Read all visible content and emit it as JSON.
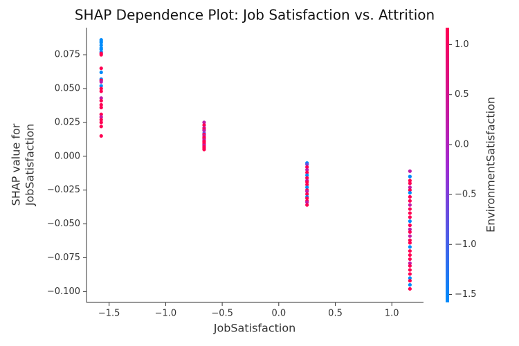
{
  "chart_data": {
    "type": "scatter",
    "title": "SHAP Dependence Plot: Job Satisfaction vs. Attrition",
    "x_label": "JobSatisfaction",
    "y_label": [
      "SHAP value for",
      "JobSatisfaction"
    ],
    "colorbar_label": "EnvironmentSatisfaction",
    "xlim": [
      -1.7,
      1.28
    ],
    "ylim": [
      -0.108,
      0.095
    ],
    "clim": [
      -1.58,
      1.17
    ],
    "colormap": [
      "#008bfb",
      "#a12ad1",
      "#ff0052"
    ],
    "xticks": [
      {
        "value": -1.5,
        "label": "−1.5"
      },
      {
        "value": -1.0,
        "label": "−1.0"
      },
      {
        "value": -0.5,
        "label": "−0.5"
      },
      {
        "value": 0,
        "label": "0.0"
      },
      0.5,
      {
        "value": 1,
        "label": "1.0"
      }
    ],
    "yticks": [
      0.075,
      {
        "value": 0.05,
        "label": "0.050"
      },
      0.025,
      {
        "value": 0,
        "label": "0.000"
      },
      {
        "value": -0.025,
        "label": "−0.025"
      },
      {
        "value": -0.05,
        "label": "−0.050"
      },
      {
        "value": -0.075,
        "label": "−0.075"
      },
      {
        "value": -0.1,
        "label": "−0.100"
      }
    ],
    "cticks": [
      {
        "value": 1,
        "label": "1.0"
      },
      0.5,
      {
        "value": 0,
        "label": "0.0"
      },
      {
        "value": -0.5,
        "label": "−0.5"
      },
      {
        "value": -1,
        "label": "−1.0"
      },
      {
        "value": -1.5,
        "label": "−1.5"
      }
    ],
    "x": [
      -1.57,
      -1.57,
      -1.57,
      -1.57,
      -1.57,
      -1.57,
      -1.57,
      -1.57,
      -1.57,
      -1.57,
      -1.57,
      -1.57,
      -1.57,
      -1.57,
      -1.57,
      -1.57,
      -1.57,
      -1.57,
      -1.57,
      -1.57,
      -1.57,
      -1.57,
      -1.57,
      -1.57,
      -1.57,
      -1.57,
      -1.57,
      -0.66,
      -0.66,
      -0.66,
      -0.66,
      -0.66,
      -0.66,
      -0.66,
      -0.66,
      -0.66,
      -0.66,
      -0.66,
      -0.66,
      -0.66,
      -0.66,
      -0.66,
      -0.66,
      -0.66,
      -0.66,
      0.25,
      0.25,
      0.25,
      0.25,
      0.25,
      0.25,
      0.25,
      0.25,
      0.25,
      0.25,
      0.25,
      0.25,
      0.25,
      0.25,
      0.25,
      0.25,
      0.25,
      0.25,
      0.25,
      1.16,
      1.16,
      1.16,
      1.16,
      1.16,
      1.16,
      1.16,
      1.16,
      1.16,
      1.16,
      1.16,
      1.16,
      1.16,
      1.16,
      1.16,
      1.16,
      1.16,
      1.16,
      1.16,
      1.16,
      1.16,
      1.16,
      1.16,
      1.16,
      1.16,
      1.16,
      1.16,
      1.16,
      1.16,
      1.16,
      1.16,
      1.16
    ],
    "y": [
      0.086,
      0.085,
      0.084,
      0.082,
      0.08,
      0.079,
      0.077,
      0.076,
      0.075,
      0.065,
      0.062,
      0.057,
      0.056,
      0.055,
      0.052,
      0.05,
      0.048,
      0.043,
      0.041,
      0.038,
      0.036,
      0.031,
      0.029,
      0.027,
      0.025,
      0.022,
      0.015,
      0.025,
      0.023,
      0.021,
      0.02,
      0.019,
      0.017,
      0.016,
      0.015,
      0.014,
      0.013,
      0.012,
      0.011,
      0.01,
      0.009,
      0.008,
      0.007,
      0.006,
      0.005,
      -0.005,
      -0.006,
      -0.008,
      -0.01,
      -0.012,
      -0.014,
      -0.016,
      -0.018,
      -0.019,
      -0.021,
      -0.023,
      -0.025,
      -0.026,
      -0.028,
      -0.03,
      -0.031,
      -0.033,
      -0.034,
      -0.036,
      -0.011,
      -0.015,
      -0.018,
      -0.02,
      -0.023,
      -0.025,
      -0.027,
      -0.03,
      -0.033,
      -0.036,
      -0.039,
      -0.042,
      -0.045,
      -0.048,
      -0.051,
      -0.054,
      -0.056,
      -0.059,
      -0.062,
      -0.064,
      -0.067,
      -0.07,
      -0.073,
      -0.076,
      -0.079,
      -0.081,
      -0.084,
      -0.087,
      -0.09,
      -0.092,
      -0.095,
      -0.098
    ],
    "color_values": [
      -1.58,
      -1.58,
      -1.58,
      -1.58,
      -1.58,
      -1.58,
      -1.58,
      1.17,
      1.17,
      1.17,
      -1.58,
      -1.58,
      1.17,
      0.25,
      -1.58,
      1.17,
      1.17,
      0.25,
      1.17,
      1.17,
      1.17,
      1.17,
      0.25,
      1.17,
      1.17,
      1.17,
      1.17,
      0.25,
      1.17,
      0.25,
      1.17,
      0.25,
      -0.66,
      1.17,
      0.25,
      1.17,
      1.17,
      0.25,
      1.17,
      1.17,
      1.17,
      0.25,
      1.17,
      1.17,
      1.17,
      -1.58,
      -0.66,
      1.17,
      0.25,
      1.17,
      -1.58,
      1.17,
      0.25,
      1.17,
      1.17,
      -1.58,
      1.17,
      0.25,
      1.17,
      -1.58,
      1.17,
      1.17,
      0.25,
      1.17,
      0.25,
      -1.58,
      1.17,
      1.17,
      0.25,
      1.17,
      -1.58,
      1.17,
      1.17,
      0.25,
      1.17,
      1.17,
      1.17,
      -1.58,
      1.17,
      0.25,
      1.17,
      0.25,
      1.17,
      1.17,
      -1.58,
      1.17,
      1.17,
      1.17,
      0.25,
      1.17,
      1.17,
      1.17,
      -1.58,
      1.17,
      -1.58,
      1.17
    ]
  }
}
